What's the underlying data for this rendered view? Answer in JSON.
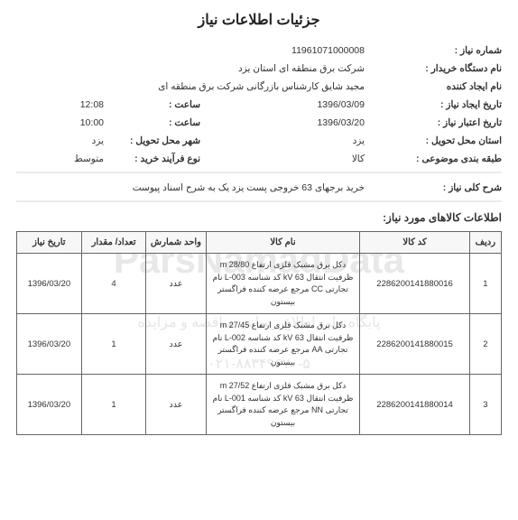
{
  "title": "جزئیات اطلاعات نیاز",
  "watermark": {
    "main": "ParsNamadData",
    "sub": "پایگاه ملی اطلاع رسانی مناقصه و مزایده",
    "tel": "۰۲۱-۸۸۳۴۹۶۷۰-۵"
  },
  "info": {
    "niaz_number_label": "شماره نیاز :",
    "niaz_number": "11961071000008",
    "buyer_org_label": "نام دستگاه خریدار :",
    "buyer_org": "شرکت برق منطقه ای استان یزد",
    "creator_label": "نام ایجاد کننده",
    "creator": "مجید شایق کارشناس بازرگانی شرکت برق منطقه ای",
    "create_date_label": "تاریخ ایجاد نیاز :",
    "create_date": "1396/03/09",
    "create_time_label": "ساعت :",
    "create_time": "12:08",
    "credit_date_label": "تاریخ اعتبار نیاز :",
    "credit_date": "1396/03/20",
    "credit_time_label": "ساعت :",
    "credit_time": "10:00",
    "province_label": "استان محل تحویل :",
    "province": "یزد",
    "city_label": "شهر محل تحویل :",
    "city": "یزد",
    "subject_class_label": "طبقه بندی موضوعی :",
    "subject_class": "کالا",
    "process_type_label": "نوع فرآیند خرید :",
    "process_type": "متوسط",
    "general_desc_label": "شرح کلی نیاز :",
    "general_desc": "خرید برجهای 63 خروجی پست یزد یک به شرح اسناد پیوست"
  },
  "section_title": "اطلاعات کالاهای مورد نیاز:",
  "table": {
    "headers": {
      "radif": "ردیف",
      "code": "کد کالا",
      "name": "نام کالا",
      "unit": "واحد شمارش",
      "qty": "تعداد/ مقدار",
      "date": "تاریخ نیاز"
    },
    "rows": [
      {
        "radif": "1",
        "code": "2286200141880016",
        "name": "دکل برق مشبک فلزی ارتفاع m 28/80 ظرفیت انتقال kV 63 کد شناسه L-003 نام تجارتی CC مرجع عرضه کننده فراگستر بیستون",
        "unit": "عدد",
        "qty": "4",
        "date": "1396/03/20"
      },
      {
        "radif": "2",
        "code": "2286200141880015",
        "name": "دکل برق مشبک فلزی ارتفاع m 27/45 ظرفیت انتقال kV 63 کد شناسه L-002 نام تجارتی AA مرجع عرضه کننده فراگستر بیستون",
        "unit": "عدد",
        "qty": "1",
        "date": "1396/03/20"
      },
      {
        "radif": "3",
        "code": "2286200141880014",
        "name": "دکل برق مشبک فلزی ارتفاع m 27/52 ظرفیت انتقال kV 63 کد شناسه L-001 نام تجارتی NN مرجع عرضه کننده فراگستر بیستون",
        "unit": "عدد",
        "qty": "1",
        "date": "1396/03/20"
      }
    ]
  }
}
